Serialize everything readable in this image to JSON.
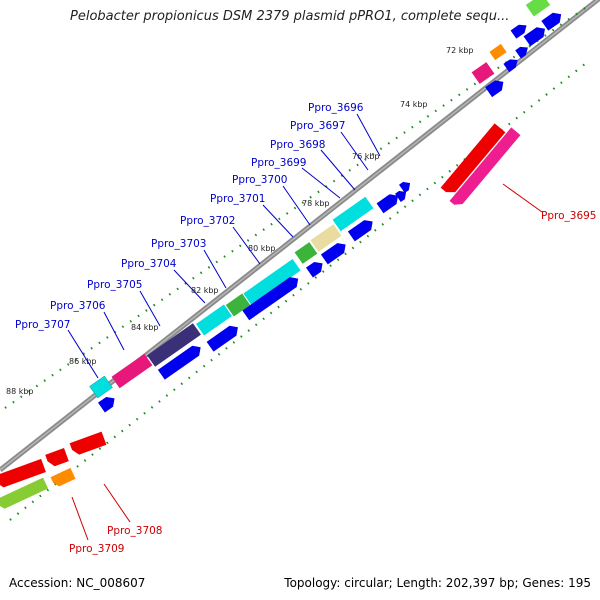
{
  "title": "Pelobacter propionicus DSM 2379 plasmid pPRO1, complete sequ...",
  "footer": {
    "accession": "Accession: NC_008607",
    "summary": "Topology: circular; Length: 202,397 bp; Genes: 195"
  },
  "kbp_marks": [
    "72 kbp",
    "74 kbp",
    "76 kbp",
    "78 kbp",
    "80 kbp",
    "82 kbp",
    "84 kbp",
    "86 kbp",
    "88 kbp"
  ],
  "gene_labels": [
    {
      "text": "Ppro_3696",
      "color": "#0000cc"
    },
    {
      "text": "Ppro_3697",
      "color": "#0000cc"
    },
    {
      "text": "Ppro_3698",
      "color": "#0000cc"
    },
    {
      "text": "Ppro_3699",
      "color": "#0000cc"
    },
    {
      "text": "Ppro_3700",
      "color": "#0000cc"
    },
    {
      "text": "Ppro_3701",
      "color": "#0000cc"
    },
    {
      "text": "Ppro_3702",
      "color": "#0000cc"
    },
    {
      "text": "Ppro_3703",
      "color": "#0000cc"
    },
    {
      "text": "Ppro_3704",
      "color": "#0000cc"
    },
    {
      "text": "Ppro_3705",
      "color": "#0000cc"
    },
    {
      "text": "Ppro_3706",
      "color": "#0000cc"
    },
    {
      "text": "Ppro_3707",
      "color": "#0000cc"
    },
    {
      "text": "Ppro_3695",
      "color": "#cc0000"
    },
    {
      "text": "Ppro_3708",
      "color": "#cc0000"
    },
    {
      "text": "Ppro_3709",
      "color": "#cc0000"
    }
  ],
  "colors": {
    "backbone": "#8a8a8a",
    "tick": "#1f8a1f",
    "cds_forward": "#0000ee",
    "cds_reverse": "#ee0000",
    "label_forward": "#0000cc",
    "label_reverse": "#cc0000"
  }
}
